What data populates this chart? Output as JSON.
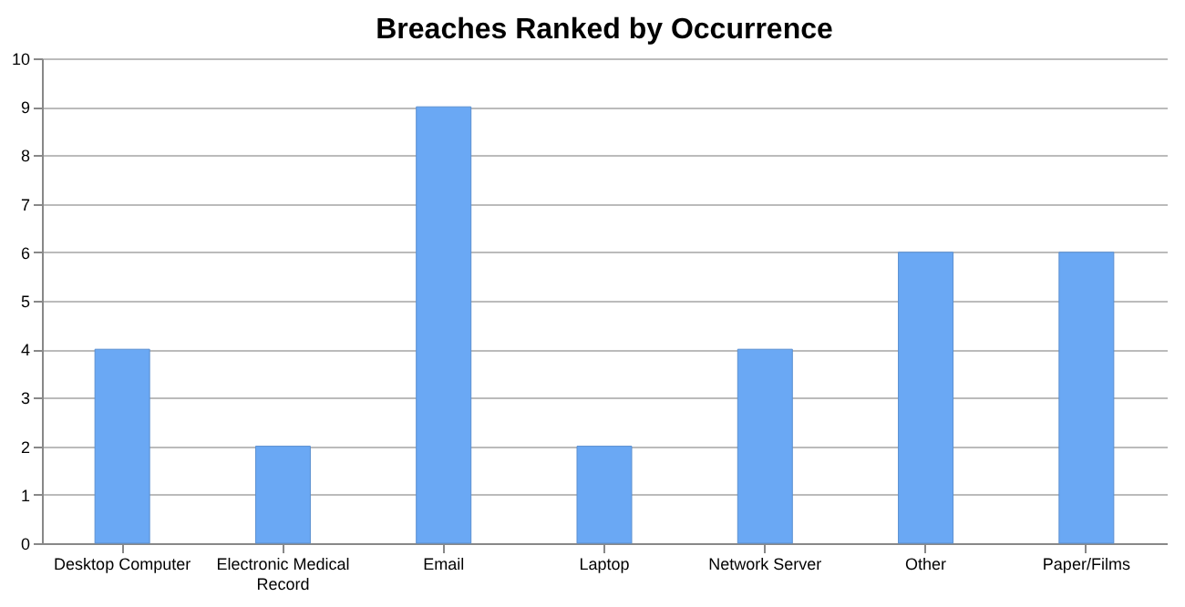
{
  "chart_data": {
    "type": "bar",
    "title": "Breaches Ranked by Occurrence",
    "categories": [
      "Desktop Computer",
      "Electronic Medical Record",
      "Email",
      "Laptop",
      "Network Server",
      "Other",
      "Paper/Films"
    ],
    "values": [
      4,
      2,
      9,
      2,
      4,
      6,
      6
    ],
    "color": "#6aa8f4",
    "ylim": [
      0,
      10
    ],
    "yticks": [
      0,
      1,
      2,
      3,
      4,
      5,
      6,
      7,
      8,
      9,
      10
    ],
    "grid": "y"
  }
}
